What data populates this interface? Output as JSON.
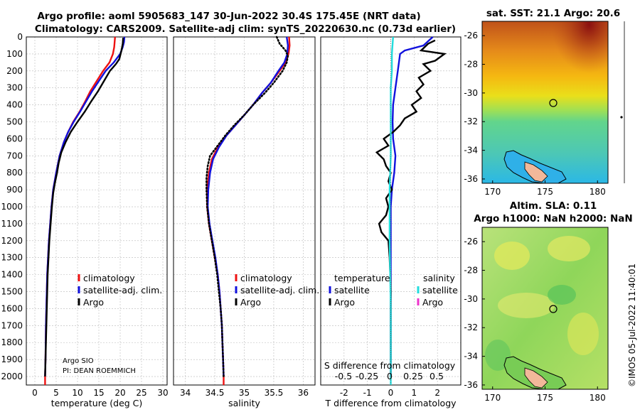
{
  "header": {
    "line1": "Argo profile: aoml 5905683_147 30-Jun-2022 30.4S 175.45E (NRT data)",
    "line2": "Climatology: CARS2009. Satellite-adj clim: synTS_20220630.nc (0.73d earlier)"
  },
  "colors": {
    "clim": "#ee1111",
    "sat": "#1111dd",
    "argo": "#000000",
    "cyan": "#22dddd",
    "magenta": "#ee33cc"
  },
  "credits": {
    "line1": "Argo SIO",
    "line2": "PI: DEAN ROEMMICH"
  },
  "stamp": "©IMOS 05-Jul-2022 11:40:01",
  "chart_data": [
    {
      "id": "temperature",
      "type": "line",
      "xlabel": "temperature (deg C)",
      "xlim": [
        -2,
        31
      ],
      "xticks": [
        0,
        5,
        10,
        15,
        20,
        25,
        30
      ],
      "ylim": [
        0,
        2050
      ],
      "yticks": [
        0,
        100,
        200,
        300,
        400,
        500,
        600,
        700,
        800,
        900,
        1000,
        1100,
        1200,
        1300,
        1400,
        1500,
        1600,
        1700,
        1800,
        1900,
        2000
      ],
      "legend": [
        "climatology",
        "satellite-adj. clim.",
        "Argo"
      ],
      "series": [
        {
          "name": "climatology",
          "color": "clim",
          "style": "solid",
          "points": [
            [
              18.8,
              0
            ],
            [
              18.7,
              30
            ],
            [
              18.6,
              60
            ],
            [
              18.3,
              100
            ],
            [
              17.5,
              150
            ],
            [
              16.0,
              200
            ],
            [
              14.5,
              260
            ],
            [
              13.0,
              320
            ],
            [
              11.8,
              380
            ],
            [
              10.5,
              440
            ],
            [
              9.0,
              500
            ],
            [
              7.8,
              560
            ],
            [
              6.8,
              620
            ],
            [
              5.8,
              700
            ],
            [
              5.0,
              800
            ],
            [
              4.3,
              900
            ],
            [
              3.9,
              1000
            ],
            [
              3.6,
              1100
            ],
            [
              3.3,
              1200
            ],
            [
              3.1,
              1300
            ],
            [
              2.9,
              1400
            ],
            [
              2.8,
              1500
            ],
            [
              2.7,
              1600
            ],
            [
              2.6,
              1700
            ],
            [
              2.55,
              1800
            ],
            [
              2.5,
              1900
            ],
            [
              2.4,
              2000
            ],
            [
              2.4,
              2050
            ]
          ]
        },
        {
          "name": "satellite-adj. clim.",
          "color": "sat",
          "style": "solid",
          "points": [
            [
              21.0,
              0
            ],
            [
              20.9,
              30
            ],
            [
              20.6,
              60
            ],
            [
              20.0,
              100
            ],
            [
              18.5,
              150
            ],
            [
              16.6,
              200
            ],
            [
              15.0,
              260
            ],
            [
              13.4,
              320
            ],
            [
              12.0,
              380
            ],
            [
              10.6,
              440
            ],
            [
              9.1,
              500
            ],
            [
              7.8,
              560
            ],
            [
              6.8,
              620
            ],
            [
              5.8,
              700
            ],
            [
              5.0,
              800
            ],
            [
              4.3,
              900
            ],
            [
              3.9,
              1000
            ],
            [
              3.6,
              1100
            ],
            [
              3.3,
              1200
            ],
            [
              3.1,
              1300
            ],
            [
              2.9,
              1400
            ],
            [
              2.8,
              1500
            ],
            [
              2.7,
              1600
            ],
            [
              2.6,
              1700
            ],
            [
              2.55,
              1800
            ],
            [
              2.5,
              1900
            ],
            [
              2.4,
              2000
            ]
          ]
        },
        {
          "name": "Argo",
          "color": "argo",
          "style": "solid",
          "points": [
            [
              20.7,
              5
            ],
            [
              20.6,
              40
            ],
            [
              20.3,
              80
            ],
            [
              20.1,
              100
            ],
            [
              19.8,
              130
            ],
            [
              19.0,
              160
            ],
            [
              17.6,
              200
            ],
            [
              16.2,
              260
            ],
            [
              14.8,
              320
            ],
            [
              13.2,
              380
            ],
            [
              11.7,
              440
            ],
            [
              10.0,
              500
            ],
            [
              8.4,
              560
            ],
            [
              7.2,
              620
            ],
            [
              6.2,
              680
            ],
            [
              5.6,
              740
            ],
            [
              5.2,
              800
            ],
            [
              4.7,
              860
            ],
            [
              4.3,
              920
            ],
            [
              4.0,
              1000
            ],
            [
              3.7,
              1100
            ],
            [
              3.4,
              1200
            ],
            [
              3.2,
              1300
            ],
            [
              3.0,
              1400
            ],
            [
              2.9,
              1500
            ],
            [
              2.8,
              1600
            ],
            [
              2.7,
              1700
            ],
            [
              2.6,
              1800
            ],
            [
              2.5,
              1900
            ],
            [
              2.4,
              2000
            ]
          ]
        }
      ]
    },
    {
      "id": "salinity",
      "type": "line",
      "xlabel": "salinity",
      "xlim": [
        33.8,
        36.2
      ],
      "xticks": [
        34,
        34.5,
        35,
        35.5,
        36
      ],
      "ylim": [
        0,
        2050
      ],
      "legend": [
        "climatology",
        "satellite-adj. clim.",
        "Argo"
      ],
      "series": [
        {
          "name": "climatology",
          "color": "clim",
          "style": "solid",
          "points": [
            [
              35.76,
              0
            ],
            [
              35.77,
              50
            ],
            [
              35.75,
              100
            ],
            [
              35.7,
              150
            ],
            [
              35.6,
              200
            ],
            [
              35.45,
              270
            ],
            [
              35.3,
              330
            ],
            [
              35.15,
              400
            ],
            [
              35.0,
              460
            ],
            [
              34.85,
              520
            ],
            [
              34.7,
              580
            ],
            [
              34.55,
              650
            ],
            [
              34.45,
              720
            ],
            [
              34.4,
              800
            ],
            [
              34.37,
              900
            ],
            [
              34.37,
              1000
            ],
            [
              34.4,
              1100
            ],
            [
              34.45,
              1200
            ],
            [
              34.5,
              1300
            ],
            [
              34.55,
              1400
            ],
            [
              34.58,
              1500
            ],
            [
              34.6,
              1600
            ],
            [
              34.62,
              1700
            ],
            [
              34.63,
              1800
            ],
            [
              34.64,
              1900
            ],
            [
              34.65,
              2000
            ],
            [
              34.65,
              2050
            ]
          ]
        },
        {
          "name": "satellite-adj. clim.",
          "color": "sat",
          "style": "solid",
          "points": [
            [
              35.72,
              0
            ],
            [
              35.74,
              50
            ],
            [
              35.73,
              100
            ],
            [
              35.68,
              150
            ],
            [
              35.58,
              200
            ],
            [
              35.45,
              270
            ],
            [
              35.3,
              330
            ],
            [
              35.15,
              400
            ],
            [
              35.0,
              460
            ],
            [
              34.85,
              520
            ],
            [
              34.7,
              580
            ],
            [
              34.57,
              650
            ],
            [
              34.47,
              720
            ],
            [
              34.42,
              800
            ],
            [
              34.39,
              900
            ],
            [
              34.38,
              1000
            ],
            [
              34.41,
              1100
            ],
            [
              34.46,
              1200
            ],
            [
              34.51,
              1300
            ],
            [
              34.55,
              1400
            ],
            [
              34.58,
              1500
            ],
            [
              34.6,
              1600
            ],
            [
              34.62,
              1700
            ],
            [
              34.63,
              1800
            ],
            [
              34.64,
              1900
            ],
            [
              34.65,
              2000
            ]
          ]
        },
        {
          "name": "Argo",
          "color": "argo",
          "style": "dotted",
          "points": [
            [
              35.55,
              0
            ],
            [
              35.6,
              40
            ],
            [
              35.7,
              80
            ],
            [
              35.74,
              110
            ],
            [
              35.72,
              150
            ],
            [
              35.65,
              200
            ],
            [
              35.5,
              270
            ],
            [
              35.35,
              330
            ],
            [
              35.15,
              400
            ],
            [
              35.0,
              460
            ],
            [
              34.83,
              520
            ],
            [
              34.68,
              580
            ],
            [
              34.55,
              640
            ],
            [
              34.42,
              700
            ],
            [
              34.38,
              760
            ],
            [
              34.36,
              830
            ],
            [
              34.36,
              900
            ],
            [
              34.37,
              1000
            ],
            [
              34.4,
              1100
            ],
            [
              34.45,
              1200
            ],
            [
              34.5,
              1300
            ],
            [
              34.54,
              1400
            ],
            [
              34.57,
              1500
            ],
            [
              34.6,
              1600
            ],
            [
              34.62,
              1700
            ],
            [
              34.63,
              1800
            ],
            [
              34.64,
              1900
            ],
            [
              34.65,
              2000
            ]
          ]
        }
      ]
    },
    {
      "id": "difference",
      "type": "line",
      "xlabel": "T difference from climatology",
      "xlim": [
        -3,
        3
      ],
      "xticks": [
        -2,
        -1,
        0,
        1,
        2
      ],
      "sxlabel": "S difference from climatology",
      "sxticks": [
        "-0.5",
        "-0.25",
        "0",
        "0.25",
        "0.5"
      ],
      "ylim": [
        0,
        2050
      ],
      "legend_temperature": {
        "title": "temperature",
        "items": [
          "satellite",
          "Argo"
        ]
      },
      "legend_salinity": {
        "title": "salinity",
        "items": [
          "satellite",
          "Argo"
        ]
      },
      "series": [
        {
          "name": "T satellite",
          "color": "sat",
          "style": "solid",
          "points": [
            [
              1.8,
              0
            ],
            [
              1.4,
              50
            ],
            [
              0.6,
              80
            ],
            [
              0.4,
              100
            ],
            [
              0.35,
              150
            ],
            [
              0.3,
              200
            ],
            [
              0.2,
              300
            ],
            [
              0.1,
              400
            ],
            [
              0.08,
              500
            ],
            [
              0.1,
              600
            ],
            [
              0.2,
              700
            ],
            [
              0.15,
              800
            ],
            [
              0.05,
              900
            ],
            [
              0,
              1000
            ],
            [
              0,
              2000
            ]
          ]
        },
        {
          "name": "T Argo",
          "color": "argo",
          "style": "solid",
          "points": [
            [
              1.9,
              20
            ],
            [
              1.6,
              40
            ],
            [
              1.3,
              80
            ],
            [
              2.3,
              100
            ],
            [
              1.9,
              140
            ],
            [
              1.4,
              160
            ],
            [
              1.7,
              200
            ],
            [
              1.2,
              240
            ],
            [
              1.4,
              280
            ],
            [
              1.1,
              320
            ],
            [
              1.3,
              360
            ],
            [
              0.9,
              400
            ],
            [
              1.1,
              440
            ],
            [
              0.6,
              480
            ],
            [
              0.4,
              520
            ],
            [
              0.1,
              560
            ],
            [
              -0.3,
              600
            ],
            [
              -0.1,
              640
            ],
            [
              -0.6,
              680
            ],
            [
              -0.3,
              720
            ],
            [
              -0.2,
              760
            ],
            [
              0.0,
              800
            ],
            [
              -0.1,
              850
            ],
            [
              0.05,
              900
            ],
            [
              -0.2,
              950
            ],
            [
              -0.1,
              1000
            ],
            [
              -0.2,
              1050
            ],
            [
              -0.5,
              1100
            ],
            [
              -0.4,
              1150
            ],
            [
              -0.1,
              1200
            ],
            [
              -0.05,
              1300
            ],
            [
              -0.02,
              1400
            ],
            [
              0,
              1500
            ],
            [
              0,
              2000
            ]
          ]
        },
        {
          "name": "S satellite",
          "color": "cyan",
          "style": "solid",
          "points": [
            [
              0.1,
              0
            ],
            [
              0.05,
              100
            ],
            [
              0.05,
              200
            ],
            [
              0.0,
              300
            ],
            [
              0.0,
              500
            ],
            [
              0.0,
              700
            ],
            [
              -0.05,
              900
            ],
            [
              -0.05,
              1200
            ],
            [
              0.0,
              1600
            ],
            [
              0.0,
              2050
            ]
          ]
        },
        {
          "name": "S Argo",
          "color": "magenta",
          "style": "solid",
          "points": []
        }
      ]
    },
    {
      "id": "sst-map",
      "type": "heatmap",
      "title": "sat. SST: 21.1 Argo: 20.6",
      "xlim": [
        169,
        181
      ],
      "xticks": [
        170,
        175,
        180
      ],
      "ylim": [
        -36.3,
        -25
      ],
      "yticks": [
        -26,
        -28,
        -30,
        -32,
        -34,
        -36
      ],
      "marker": [
        175.45,
        -30.4
      ]
    },
    {
      "id": "sla-map",
      "type": "heatmap",
      "title": "Altim. SLA: 0.11",
      "subtitle": "Argo h1000: NaN h2000: NaN",
      "xlim": [
        169,
        181
      ],
      "xticks": [
        170,
        175,
        180
      ],
      "ylim": [
        -36.3,
        -25
      ],
      "yticks": [
        -26,
        -28,
        -30,
        -32,
        -34,
        -36
      ],
      "marker": [
        175.45,
        -30.4
      ]
    }
  ]
}
